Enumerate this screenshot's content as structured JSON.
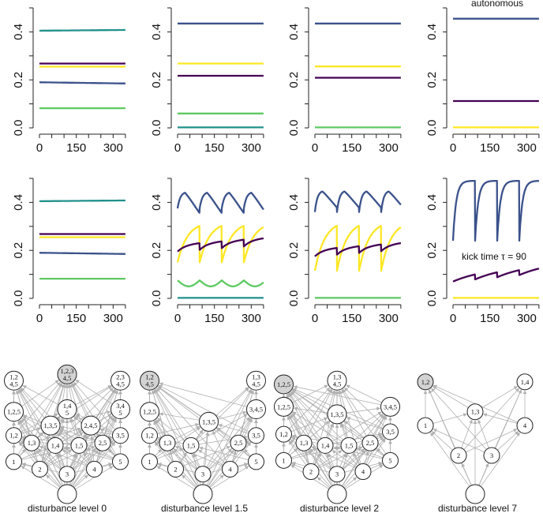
{
  "chart_data": {
    "type": "line",
    "x_range": [
      0,
      360
    ],
    "x_ticks": [
      0,
      150,
      300
    ],
    "y_range": [
      0,
      0.5
    ],
    "y_ticks": [
      0.0,
      0.2,
      0.4
    ],
    "y_tick_labels": [
      "0.0",
      "0.2",
      "0.4"
    ],
    "colors": {
      "teal": "#21918c",
      "purple": "#440154",
      "yellow": "#fde725",
      "blue": "#3b528b",
      "green": "#5ec962",
      "edge": "#b0b0b0",
      "node_highlight": "#d3d3d3"
    },
    "annotations": {
      "autonomous": "autonomous",
      "kick_time": "kick time τ = 90"
    },
    "captions": [
      "disturbance level  0",
      "disturbance level  1.5",
      "disturbance level  2",
      "disturbance level  7"
    ],
    "rows": [
      [
        {
          "series": [
            {
              "color": "teal",
              "kind": "const",
              "start": 0.405,
              "end": 0.408
            },
            {
              "color": "purple",
              "kind": "const",
              "start": 0.268,
              "end": 0.268
            },
            {
              "color": "yellow",
              "kind": "const",
              "start": 0.255,
              "end": 0.255
            },
            {
              "color": "blue",
              "kind": "const",
              "start": 0.19,
              "end": 0.185
            },
            {
              "color": "green",
              "kind": "const",
              "start": 0.082,
              "end": 0.082
            }
          ]
        },
        {
          "series": [
            {
              "color": "blue",
              "kind": "const",
              "start": 0.435,
              "end": 0.435
            },
            {
              "color": "yellow",
              "kind": "const",
              "start": 0.268,
              "end": 0.268
            },
            {
              "color": "purple",
              "kind": "const",
              "start": 0.217,
              "end": 0.217
            },
            {
              "color": "green",
              "kind": "const",
              "start": 0.06,
              "end": 0.06
            },
            {
              "color": "teal",
              "kind": "const",
              "start": 0.002,
              "end": 0.002
            }
          ]
        },
        {
          "series": [
            {
              "color": "blue",
              "kind": "const",
              "start": 0.435,
              "end": 0.435
            },
            {
              "color": "yellow",
              "kind": "const",
              "start": 0.256,
              "end": 0.256
            },
            {
              "color": "purple",
              "kind": "const",
              "start": 0.209,
              "end": 0.209
            },
            {
              "color": "green",
              "kind": "const",
              "start": 0.002,
              "end": 0.002
            }
          ]
        },
        {
          "annotation": "autonomous",
          "series": [
            {
              "color": "blue",
              "kind": "const",
              "start": 0.455,
              "end": 0.455
            },
            {
              "color": "purple",
              "kind": "const",
              "start": 0.112,
              "end": 0.112
            },
            {
              "color": "yellow",
              "kind": "const",
              "start": 0.002,
              "end": 0.002
            }
          ]
        }
      ],
      [
        {
          "series": [
            {
              "color": "teal",
              "kind": "const",
              "start": 0.405,
              "end": 0.408
            },
            {
              "color": "purple",
              "kind": "const",
              "start": 0.268,
              "end": 0.268
            },
            {
              "color": "yellow",
              "kind": "const",
              "start": 0.255,
              "end": 0.255
            },
            {
              "color": "blue",
              "kind": "const",
              "start": 0.19,
              "end": 0.185
            },
            {
              "color": "green",
              "kind": "const",
              "start": 0.082,
              "end": 0.082
            }
          ]
        },
        {
          "series": [
            {
              "color": "blue",
              "kind": "kick",
              "period": 90,
              "low": 0.375,
              "high": 0.445,
              "rate": 0.09,
              "decay": 0.0015
            },
            {
              "color": "yellow",
              "kind": "kick",
              "period": 90,
              "low": 0.15,
              "high": 0.32,
              "rate": 0.025,
              "decay": 0
            },
            {
              "color": "purple",
              "kind": "kick",
              "period": 90,
              "low": 0.195,
              "high": 0.225,
              "rate": 0.03,
              "trend": 8e-05
            },
            {
              "color": "green",
              "kind": "bump",
              "period": 90,
              "low": 0.05,
              "high": 0.075
            },
            {
              "color": "teal",
              "kind": "const",
              "start": 0.002,
              "end": 0.002
            }
          ]
        },
        {
          "series": [
            {
              "color": "blue",
              "kind": "kick",
              "period": 90,
              "low": 0.36,
              "high": 0.45,
              "rate": 0.1,
              "decay": 0.0012
            },
            {
              "color": "yellow",
              "kind": "kick",
              "period": 90,
              "low": 0.115,
              "high": 0.325,
              "rate": 0.025,
              "decay": 0
            },
            {
              "color": "purple",
              "kind": "kick",
              "period": 90,
              "low": 0.175,
              "high": 0.205,
              "rate": 0.03,
              "trend": 8e-05
            },
            {
              "color": "green",
              "kind": "const",
              "start": 0.002,
              "end": 0.002
            }
          ]
        },
        {
          "annotation": "kick_time",
          "series": [
            {
              "color": "blue",
              "kind": "kick",
              "period": 90,
              "low": 0.24,
              "high": 0.49,
              "rate": 0.08,
              "decay": 0
            },
            {
              "color": "purple",
              "kind": "kick",
              "period": 90,
              "low": 0.07,
              "high": 0.105,
              "rate": 0.01,
              "trend": 0.0001
            },
            {
              "color": "yellow",
              "kind": "const",
              "start": 0.002,
              "end": 0.002
            }
          ]
        }
      ]
    ],
    "networks": [
      {
        "nodes": [
          {
            "id": "empty",
            "label": "",
            "x": 0.5,
            "y": 1.0,
            "big": true
          },
          {
            "id": "1",
            "label": "1",
            "x": 0.05,
            "y": 0.74
          },
          {
            "id": "2",
            "label": "2",
            "x": 0.27,
            "y": 0.8
          },
          {
            "id": "3",
            "label": "3",
            "x": 0.5,
            "y": 0.84
          },
          {
            "id": "4",
            "label": "4",
            "x": 0.73,
            "y": 0.8
          },
          {
            "id": "5",
            "label": "5",
            "x": 0.95,
            "y": 0.74
          },
          {
            "id": "1,2",
            "label": "1,2",
            "x": 0.05,
            "y": 0.53
          },
          {
            "id": "1,3",
            "label": "1,3",
            "x": 0.2,
            "y": 0.59
          },
          {
            "id": "1,4",
            "label": "1,4",
            "x": 0.4,
            "y": 0.61
          },
          {
            "id": "1,5",
            "label": "1,5",
            "x": 0.6,
            "y": 0.61
          },
          {
            "id": "2,5",
            "label": "2,5",
            "x": 0.8,
            "y": 0.59
          },
          {
            "id": "3,5",
            "label": "3,5",
            "x": 0.95,
            "y": 0.53
          },
          {
            "id": "1,2,5",
            "label": "1,2,5",
            "x": 0.05,
            "y": 0.34
          },
          {
            "id": "1,3,5",
            "label": "1,3,5",
            "x": 0.36,
            "y": 0.45
          },
          {
            "id": "1,4,5",
            "label": "1,4\n5",
            "x": 0.5,
            "y": 0.32
          },
          {
            "id": "2,4,5",
            "label": "2,4,5",
            "x": 0.7,
            "y": 0.45
          },
          {
            "id": "3,4,5",
            "label": "3,4\n5",
            "x": 0.95,
            "y": 0.32
          },
          {
            "id": "1,2,4,5",
            "label": "1,2\n4,5",
            "x": 0.05,
            "y": 0.09
          },
          {
            "id": "1,2,3,4,5",
            "label": "1,2,3\n4,5",
            "x": 0.5,
            "y": 0.04,
            "hl": true
          },
          {
            "id": "2,3,4,5",
            "label": "2,3\n4,5",
            "x": 0.95,
            "y": 0.09
          }
        ]
      },
      {
        "nodes": [
          {
            "id": "empty",
            "label": "",
            "x": 0.5,
            "y": 1.0,
            "big": true
          },
          {
            "id": "1",
            "label": "1",
            "x": 0.05,
            "y": 0.74
          },
          {
            "id": "2",
            "label": "2",
            "x": 0.27,
            "y": 0.8
          },
          {
            "id": "3",
            "label": "3",
            "x": 0.5,
            "y": 0.84
          },
          {
            "id": "4",
            "label": "4",
            "x": 0.73,
            "y": 0.8
          },
          {
            "id": "5",
            "label": "5",
            "x": 0.95,
            "y": 0.74
          },
          {
            "id": "1,2",
            "label": "1,2",
            "x": 0.05,
            "y": 0.53
          },
          {
            "id": "1,3",
            "label": "1,3",
            "x": 0.2,
            "y": 0.59
          },
          {
            "id": "1,5",
            "label": "1,5",
            "x": 0.4,
            "y": 0.61
          },
          {
            "id": "2,5",
            "label": "2,5",
            "x": 0.8,
            "y": 0.59
          },
          {
            "id": "3,5",
            "label": "3,5",
            "x": 0.95,
            "y": 0.53
          },
          {
            "id": "1,2,5",
            "label": "1,2,5",
            "x": 0.05,
            "y": 0.34
          },
          {
            "id": "1,3,5",
            "label": "1,3,5",
            "x": 0.55,
            "y": 0.42
          },
          {
            "id": "3,4,5",
            "label": "3,4,5",
            "x": 0.95,
            "y": 0.32
          },
          {
            "id": "1,2,4,5",
            "label": "1,2\n4,5",
            "x": 0.05,
            "y": 0.09,
            "hl": true
          },
          {
            "id": "1,3,4,5",
            "label": "1,3\n4,5",
            "x": 0.95,
            "y": 0.09
          }
        ]
      },
      {
        "nodes": [
          {
            "id": "empty",
            "label": "",
            "x": 0.5,
            "y": 1.0,
            "big": true
          },
          {
            "id": "1",
            "label": "1",
            "x": 0.05,
            "y": 0.73
          },
          {
            "id": "2",
            "label": "2",
            "x": 0.28,
            "y": 0.82
          },
          {
            "id": "3",
            "label": "3",
            "x": 0.5,
            "y": 0.84
          },
          {
            "id": "4",
            "label": "4",
            "x": 0.72,
            "y": 0.82
          },
          {
            "id": "5",
            "label": "5",
            "x": 0.95,
            "y": 0.73
          },
          {
            "id": "1,2",
            "label": "1,2",
            "x": 0.05,
            "y": 0.52
          },
          {
            "id": "1,3",
            "label": "1,3",
            "x": 0.22,
            "y": 0.59
          },
          {
            "id": "1,4",
            "label": "1,4",
            "x": 0.4,
            "y": 0.61
          },
          {
            "id": "1,5",
            "label": "1,5",
            "x": 0.6,
            "y": 0.61
          },
          {
            "id": "2,5",
            "label": "2,5",
            "x": 0.78,
            "y": 0.59
          },
          {
            "id": "3,5",
            "label": "3,5",
            "x": 0.95,
            "y": 0.5
          },
          {
            "id": "1,3,5",
            "label": "1,3,5",
            "x": 0.5,
            "y": 0.36
          },
          {
            "id": "1,2,5",
            "label": "1,2,5",
            "x": 0.05,
            "y": 0.3
          },
          {
            "id": "3,4,5",
            "label": "3,4,5",
            "x": 0.95,
            "y": 0.3
          },
          {
            "id": "1,3,4,5",
            "label": "1,3\n4,5",
            "x": 0.5,
            "y": 0.09
          },
          {
            "id": "1,2,5top",
            "label": "1,2,5",
            "x": 0.05,
            "y": 0.12,
            "hl": true
          }
        ]
      },
      {
        "nodes": [
          {
            "id": "empty",
            "label": "",
            "x": 0.5,
            "y": 1.0,
            "big": true
          },
          {
            "id": "1",
            "label": "1",
            "x": 0.08,
            "y": 0.45
          },
          {
            "id": "2",
            "label": "2",
            "x": 0.36,
            "y": 0.69
          },
          {
            "id": "3",
            "label": "3",
            "x": 0.64,
            "y": 0.69
          },
          {
            "id": "4",
            "label": "4",
            "x": 0.92,
            "y": 0.45
          },
          {
            "id": "1,3",
            "label": "1,3",
            "x": 0.5,
            "y": 0.34
          },
          {
            "id": "1,2",
            "label": "1,2",
            "x": 0.08,
            "y": 0.1,
            "hl": true
          },
          {
            "id": "1,4",
            "label": "1,4",
            "x": 0.92,
            "y": 0.1
          }
        ]
      }
    ]
  }
}
